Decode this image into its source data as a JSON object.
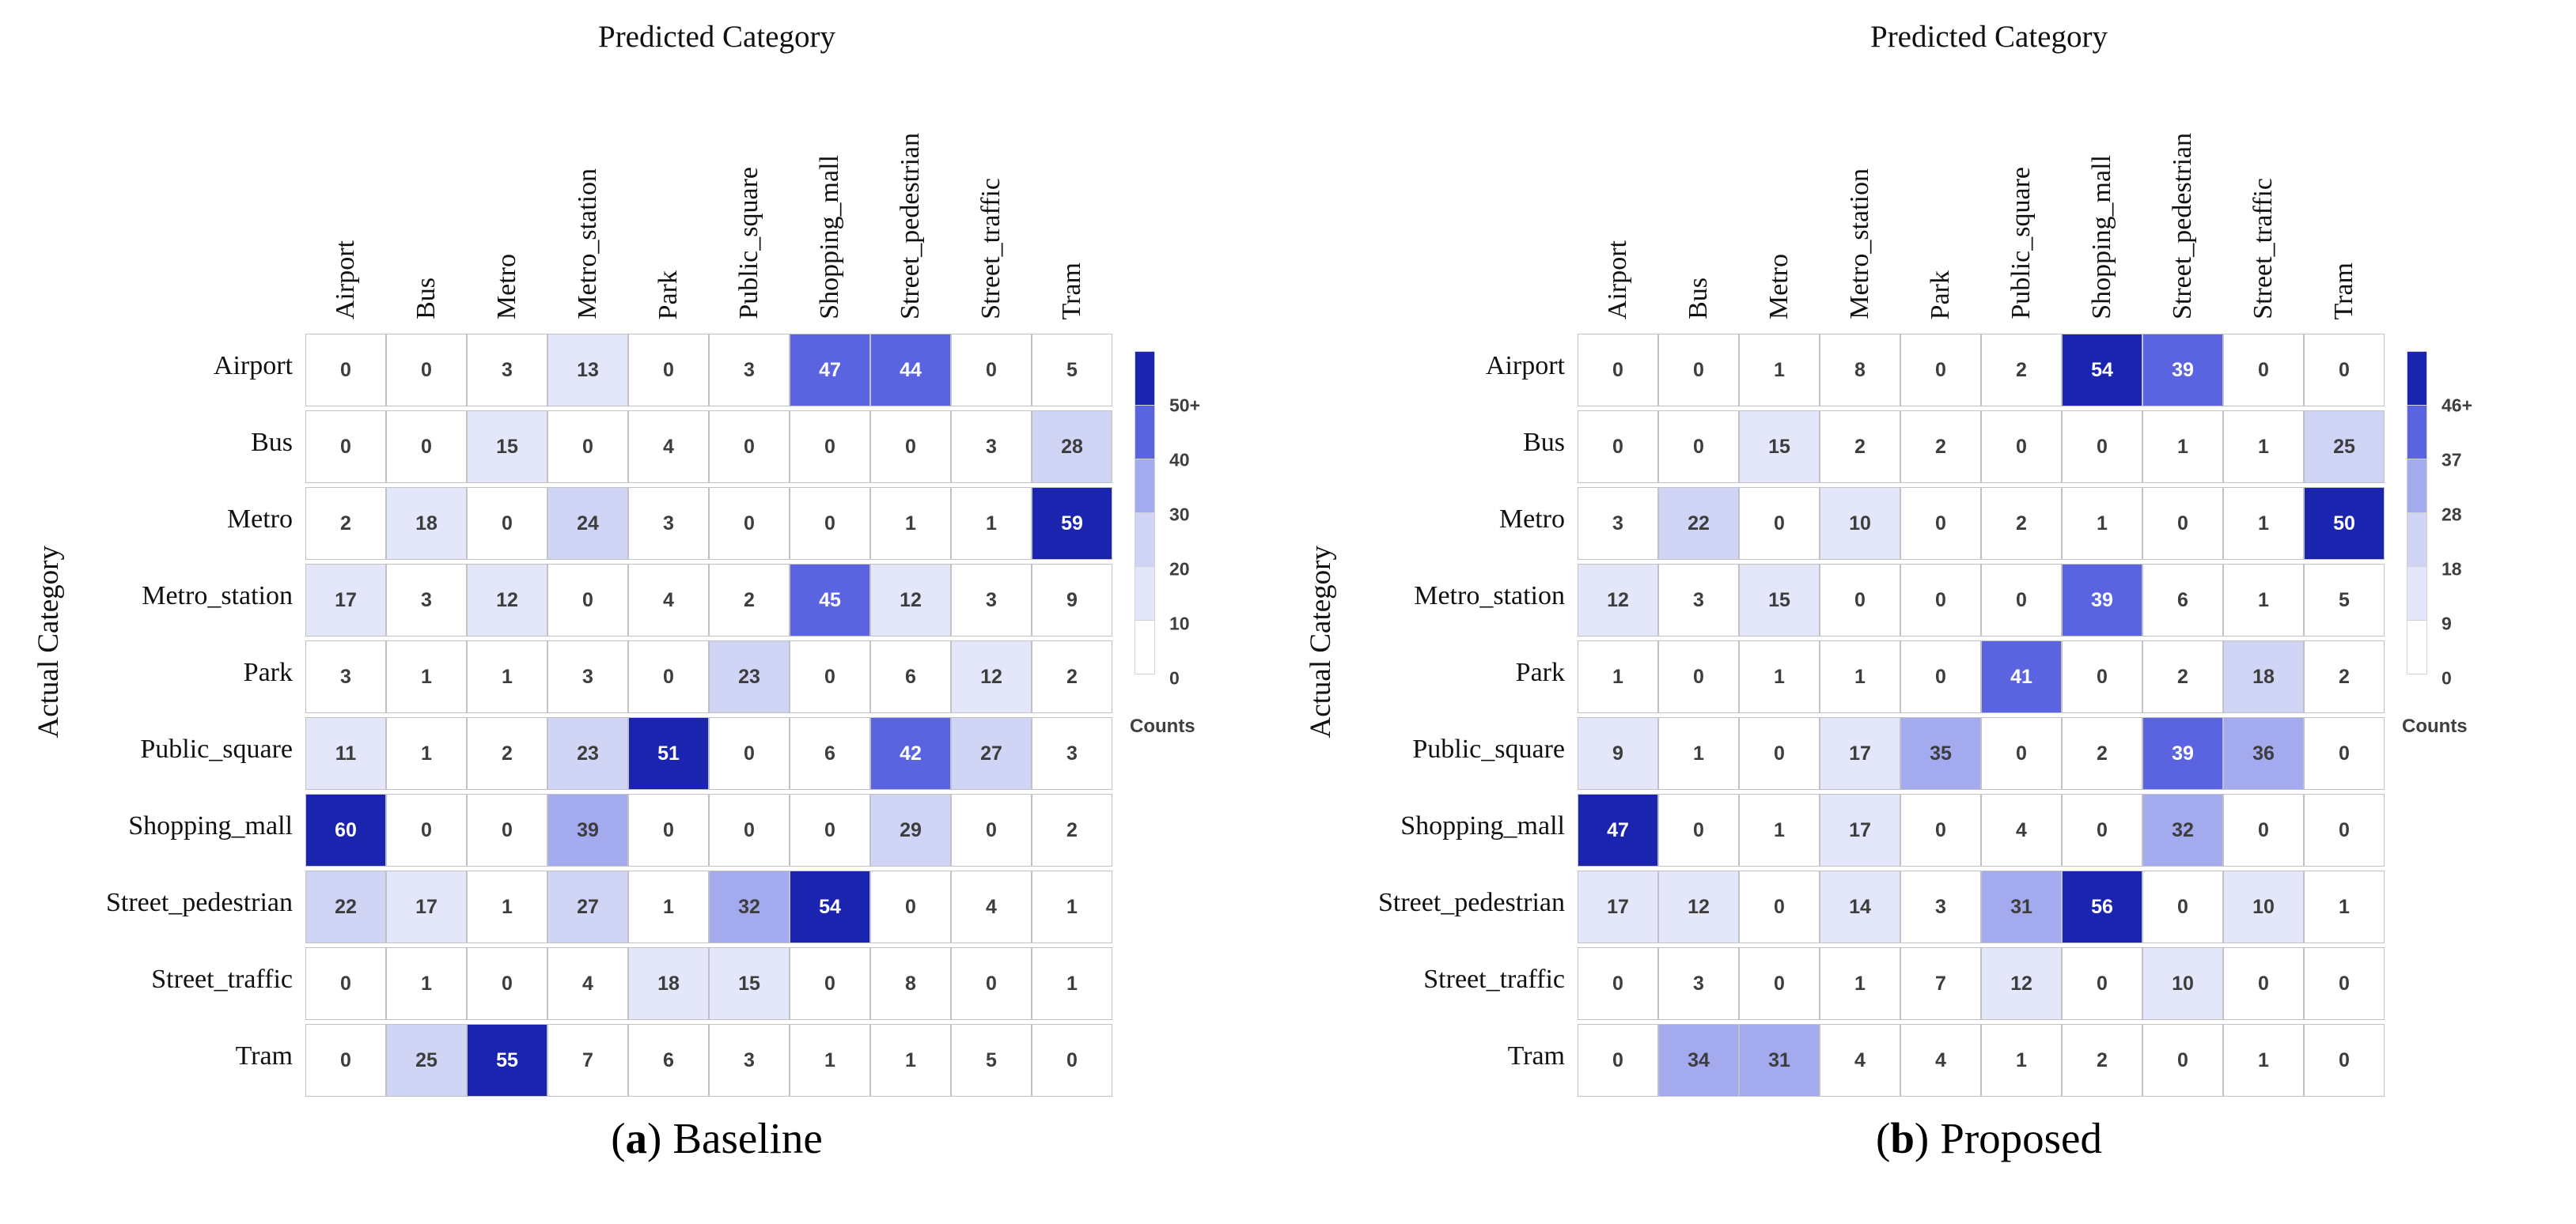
{
  "colors": {
    "scale": [
      "#ffffff",
      "#e4e6f9",
      "#d0d4f5",
      "#a3aaee",
      "#5a64e0",
      "#1b24ae"
    ],
    "cell_text_dark": "#3d3d3d",
    "cell_text_light": "#ffffff",
    "grid_line": "#c2c2c6"
  },
  "chart_data": [
    {
      "type": "heatmap",
      "xlabel": "Predicted Category",
      "ylabel": "Actual Category",
      "caption_letter": "a",
      "caption_text": "Baseline",
      "categories": [
        "Airport",
        "Bus",
        "Metro",
        "Metro_station",
        "Park",
        "Public_square",
        "Shopping_mall",
        "Street_pedestrian",
        "Street_traffic",
        "Tram"
      ],
      "matrix": [
        [
          0,
          0,
          3,
          13,
          0,
          3,
          47,
          44,
          0,
          5
        ],
        [
          0,
          0,
          15,
          0,
          4,
          0,
          0,
          0,
          3,
          28
        ],
        [
          2,
          18,
          0,
          24,
          3,
          0,
          0,
          1,
          1,
          59
        ],
        [
          17,
          3,
          12,
          0,
          4,
          2,
          45,
          12,
          3,
          9
        ],
        [
          3,
          1,
          1,
          3,
          0,
          23,
          0,
          6,
          12,
          2
        ],
        [
          11,
          1,
          2,
          23,
          51,
          0,
          6,
          42,
          27,
          3
        ],
        [
          60,
          0,
          0,
          39,
          0,
          0,
          0,
          29,
          0,
          2
        ],
        [
          22,
          17,
          1,
          27,
          1,
          32,
          54,
          0,
          4,
          1
        ],
        [
          0,
          1,
          0,
          4,
          18,
          15,
          0,
          8,
          0,
          1
        ],
        [
          0,
          25,
          55,
          7,
          6,
          3,
          1,
          1,
          5,
          0
        ]
      ],
      "colorbar": {
        "title": "Counts",
        "tick_labels": [
          "50+",
          "40",
          "30",
          "20",
          "10",
          "0"
        ],
        "thresholds": [
          10,
          20,
          30,
          40,
          50
        ]
      }
    },
    {
      "type": "heatmap",
      "xlabel": "Predicted Category",
      "ylabel": "Actual Category",
      "caption_letter": "b",
      "caption_text": "Proposed",
      "categories": [
        "Airport",
        "Bus",
        "Metro",
        "Metro_station",
        "Park",
        "Public_square",
        "Shopping_mall",
        "Street_pedestrian",
        "Street_traffic",
        "Tram"
      ],
      "matrix": [
        [
          0,
          0,
          1,
          8,
          0,
          2,
          54,
          39,
          0,
          0
        ],
        [
          0,
          0,
          15,
          2,
          2,
          0,
          0,
          1,
          1,
          25
        ],
        [
          3,
          22,
          0,
          10,
          0,
          2,
          1,
          0,
          1,
          50
        ],
        [
          12,
          3,
          15,
          0,
          0,
          0,
          39,
          6,
          1,
          5
        ],
        [
          1,
          0,
          1,
          1,
          0,
          41,
          0,
          2,
          18,
          2
        ],
        [
          9,
          1,
          0,
          17,
          35,
          0,
          2,
          39,
          36,
          0
        ],
        [
          47,
          0,
          1,
          17,
          0,
          4,
          0,
          32,
          0,
          0
        ],
        [
          17,
          12,
          0,
          14,
          3,
          31,
          56,
          0,
          10,
          1
        ],
        [
          0,
          3,
          0,
          1,
          7,
          12,
          0,
          10,
          0,
          0
        ],
        [
          0,
          34,
          31,
          4,
          4,
          1,
          2,
          0,
          1,
          0
        ]
      ],
      "colorbar": {
        "title": "Counts",
        "tick_labels": [
          "46+",
          "37",
          "28",
          "18",
          "9",
          "0"
        ],
        "thresholds": [
          9,
          18,
          28,
          37,
          46
        ]
      }
    }
  ]
}
